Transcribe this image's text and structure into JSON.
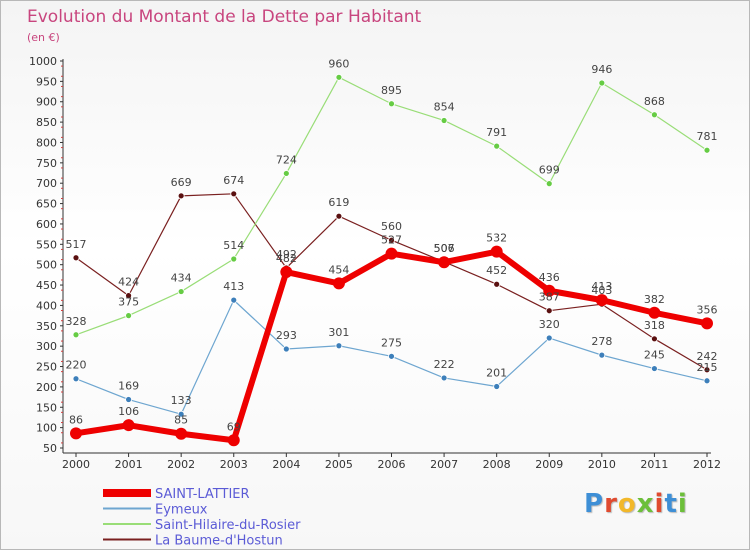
{
  "colors": {
    "title": "#c8457e",
    "legend_text": "#5b5bd6"
  },
  "chart_data": {
    "type": "line",
    "title": "Evolution du Montant de la Dette par Habitant",
    "subtitle": "(en €)",
    "xlabel": "",
    "ylabel": "",
    "x": [
      2000,
      2001,
      2002,
      2003,
      2004,
      2005,
      2006,
      2007,
      2008,
      2009,
      2010,
      2011,
      2012
    ],
    "ylim": [
      50,
      1000
    ],
    "yticks": [
      50,
      100,
      150,
      200,
      250,
      300,
      350,
      400,
      450,
      500,
      550,
      600,
      650,
      700,
      750,
      800,
      850,
      900,
      950,
      1000
    ],
    "grid": false,
    "legend_position": "bottom-left",
    "series": [
      {
        "name": "La Baume-d'Hostun",
        "color": "#7a2020",
        "marker_color": "#5a1010",
        "line_width": 1.2,
        "marker_radius": 3,
        "values": [
          517,
          424,
          669,
          674,
          492,
          619,
          560,
          507,
          452,
          387,
          403,
          318,
          242
        ]
      },
      {
        "name": "Saint-Hilaire-du-Rosier",
        "color": "#99dd77",
        "marker_color": "#66cc44",
        "line_width": 1.2,
        "marker_radius": 3,
        "values": [
          328,
          375,
          434,
          514,
          724,
          960,
          895,
          854,
          791,
          699,
          946,
          868,
          781
        ]
      },
      {
        "name": "Eymeux",
        "color": "#6ea6d0",
        "marker_color": "#3d7fba",
        "line_width": 1.2,
        "marker_radius": 3,
        "values": [
          220,
          169,
          133,
          413,
          293,
          301,
          275,
          222,
          201,
          320,
          278,
          245,
          215
        ]
      },
      {
        "name": "SAINT-LATTIER",
        "color": "#ee0000",
        "marker_color": "#ee0000",
        "line_width": 6,
        "marker_radius": 6,
        "values": [
          86,
          106,
          85,
          69,
          482,
          454,
          527,
          506,
          532,
          436,
          413,
          382,
          356
        ]
      }
    ],
    "legend_order": [
      "SAINT-LATTIER",
      "Eymeux",
      "Saint-Hilaire-du-Rosier",
      "La Baume-d'Hostun"
    ]
  },
  "logo": {
    "letters": [
      "P",
      "r",
      "o",
      "x",
      "i",
      "t",
      "i"
    ],
    "colors": [
      "#3e8fd6",
      "#e04a2f",
      "#f2b82a",
      "#6cbf3a",
      "#e04a2f",
      "#3e8fd6",
      "#6cbf3a"
    ]
  }
}
